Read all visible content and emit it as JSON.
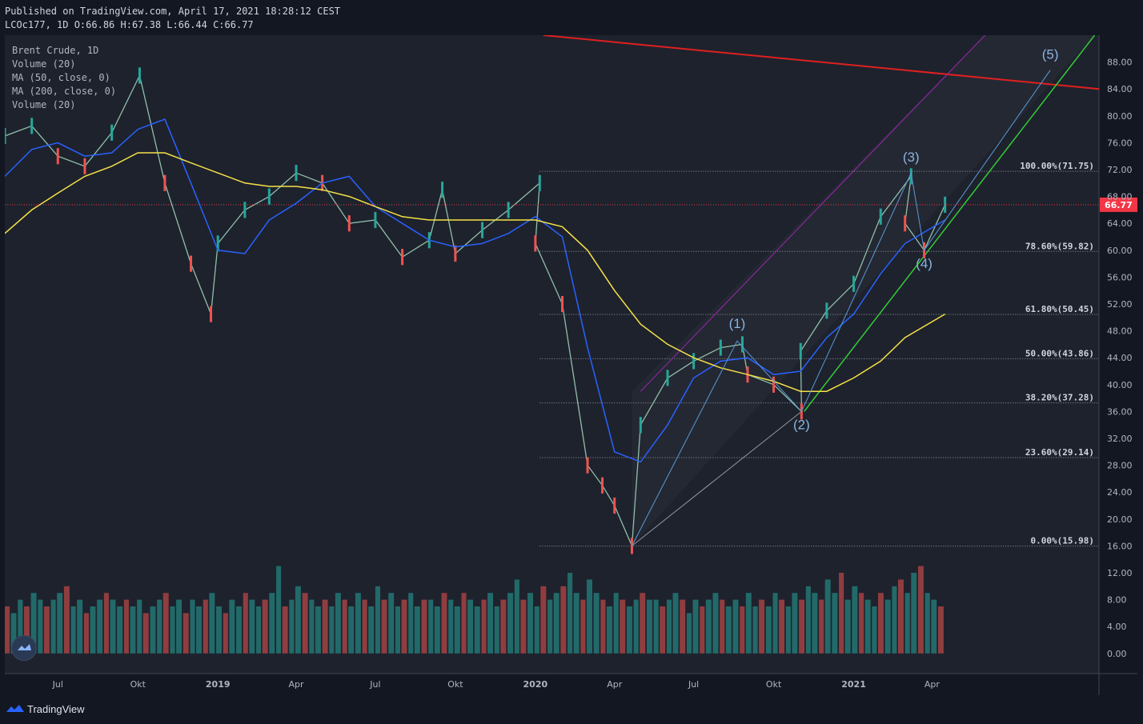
{
  "header": {
    "published": "Published on TradingView.com, April 17, 2021 18:28:12 CEST",
    "ohlc": "LCOc177, 1D O:66.86 H:67.38 L:66.44 C:66.77"
  },
  "legend": {
    "items": [
      "Brent Crude, 1D",
      "Volume (20)",
      "MA (50, close, 0)",
      "MA (200, close, 0)",
      "Volume (20)"
    ]
  },
  "footer": {
    "brand": "TradingView"
  },
  "colors": {
    "background": "#1e222d",
    "grid": "#2a2e39",
    "up": "#26a69a",
    "down": "#ef5350",
    "ma50": "#2962ff",
    "ma200": "#f5e146",
    "wave": "#5b9bd5",
    "fib": "#9598a1",
    "red_trend": "#e02020",
    "green_trend": "#33cc33",
    "purple_channel": "#9c27b0",
    "last_price": "#f23645"
  },
  "chart_data": {
    "type": "line",
    "title": "Brent Crude, 1D",
    "price_axis": {
      "ylim": [
        -3,
        92
      ],
      "ticks": [
        "88.00",
        "84.00",
        "80.00",
        "76.00",
        "72.00",
        "68.00",
        "64.00",
        "60.00",
        "56.00",
        "52.00",
        "48.00",
        "44.00",
        "40.00",
        "36.00",
        "32.00",
        "28.00",
        "24.00",
        "20.00",
        "16.00",
        "12.00",
        "8.00",
        "4.00",
        "0.00"
      ],
      "tick_values": [
        88,
        84,
        80,
        76,
        72,
        68,
        64,
        60,
        56,
        52,
        48,
        44,
        40,
        36,
        32,
        28,
        24,
        20,
        16,
        12,
        8,
        4,
        0
      ],
      "last_price": "66.77",
      "last_price_value": 66.77
    },
    "time_axis": {
      "labels": [
        "Jul",
        "Okt",
        "2019",
        "Apr",
        "Jul",
        "Okt",
        "2020",
        "Apr",
        "Jul",
        "Okt",
        "2021",
        "Apr"
      ],
      "bold": [
        false,
        false,
        true,
        false,
        false,
        false,
        true,
        false,
        false,
        false,
        true,
        false
      ],
      "dates": [
        "2018-07",
        "2018-10",
        "2019-01",
        "2019-04",
        "2019-07",
        "2019-10",
        "2020-01",
        "2020-04",
        "2020-07",
        "2020-10",
        "2021-01",
        "2021-04"
      ]
    },
    "series": [
      {
        "name": "Brent Crude",
        "dates": [
          "2018-05",
          "2018-06",
          "2018-07",
          "2018-08",
          "2018-09",
          "2018-10-03",
          "2018-11",
          "2018-12",
          "2018-12-24",
          "2019-01",
          "2019-02",
          "2019-03",
          "2019-04",
          "2019-05",
          "2019-06",
          "2019-07",
          "2019-08",
          "2019-09",
          "2019-09-16",
          "2019-10",
          "2019-11",
          "2019-12",
          "2020-01-06",
          "2020-01",
          "2020-02",
          "2020-03",
          "2020-03-18",
          "2020-04",
          "2020-04-21",
          "2020-05",
          "2020-06",
          "2020-07",
          "2020-08",
          "2020-08-26",
          "2020-09",
          "2020-10",
          "2020-11-02",
          "2020-11",
          "2020-12",
          "2021-01",
          "2021-02",
          "2021-03-08",
          "2021-03",
          "2021-03-23",
          "2021-04-16"
        ],
        "values": [
          77.0,
          78.5,
          74.0,
          72.5,
          77.5,
          86.0,
          70.0,
          58.0,
          50.5,
          61.0,
          66.0,
          68.0,
          71.5,
          70.0,
          64.0,
          64.5,
          59.0,
          61.5,
          69.0,
          59.5,
          63.0,
          66.0,
          70.0,
          61.0,
          52.0,
          28.0,
          25.0,
          22.0,
          16.0,
          34.0,
          41.0,
          43.5,
          45.5,
          46.0,
          41.5,
          40.0,
          36.0,
          45.0,
          51.0,
          55.0,
          65.0,
          71.0,
          64.0,
          60.0,
          66.77
        ]
      },
      {
        "name": "MA (50, close, 0)",
        "dates": [
          "2018-05",
          "2018-06",
          "2018-07",
          "2018-08",
          "2018-09",
          "2018-10",
          "2018-11",
          "2018-12",
          "2019-01",
          "2019-02",
          "2019-03",
          "2019-04",
          "2019-05",
          "2019-06",
          "2019-07",
          "2019-08",
          "2019-09",
          "2019-10",
          "2019-11",
          "2019-12",
          "2020-01",
          "2020-02",
          "2020-03",
          "2020-04",
          "2020-05",
          "2020-06",
          "2020-07",
          "2020-08",
          "2020-09",
          "2020-10",
          "2020-11",
          "2020-12",
          "2021-01",
          "2021-02",
          "2021-03",
          "2021-04-16"
        ],
        "values": [
          71.0,
          75.0,
          76.0,
          74.0,
          74.5,
          78.0,
          79.5,
          70.0,
          60.0,
          59.5,
          64.5,
          67.0,
          70.0,
          71.0,
          66.5,
          64.0,
          61.5,
          60.5,
          61.0,
          62.5,
          65.0,
          62.0,
          45.5,
          30.0,
          28.5,
          34.0,
          41.0,
          43.5,
          44.0,
          41.5,
          42.0,
          47.0,
          50.5,
          56.5,
          61.0,
          64.5
        ]
      },
      {
        "name": "MA (200, close, 0)",
        "dates": [
          "2018-05",
          "2018-06",
          "2018-07",
          "2018-08",
          "2018-09",
          "2018-10",
          "2018-11",
          "2018-12",
          "2019-01",
          "2019-02",
          "2019-03",
          "2019-04",
          "2019-05",
          "2019-06",
          "2019-07",
          "2019-08",
          "2019-09",
          "2019-10",
          "2019-11",
          "2019-12",
          "2020-01",
          "2020-02",
          "2020-03",
          "2020-04",
          "2020-05",
          "2020-06",
          "2020-07",
          "2020-08",
          "2020-09",
          "2020-10",
          "2020-11",
          "2020-12",
          "2021-01",
          "2021-02",
          "2021-03",
          "2021-04-16"
        ],
        "values": [
          62.5,
          66.0,
          68.5,
          71.0,
          72.5,
          74.5,
          74.5,
          73.0,
          71.5,
          70.0,
          69.5,
          69.5,
          69.0,
          68.0,
          66.5,
          65.0,
          64.5,
          64.5,
          64.5,
          64.5,
          64.5,
          63.5,
          60.0,
          54.0,
          49.0,
          46.0,
          44.0,
          42.5,
          41.5,
          40.5,
          39.0,
          39.0,
          41.0,
          43.5,
          47.0,
          50.5
        ]
      }
    ],
    "volume": {
      "name": "Volume (20)",
      "bars": [
        7,
        6,
        8,
        7,
        9,
        8,
        7,
        8,
        9,
        10,
        7,
        8,
        6,
        7,
        8,
        9,
        8,
        7,
        8,
        7,
        8,
        6,
        7,
        8,
        9,
        7,
        8,
        6,
        8,
        7,
        8,
        9,
        7,
        6,
        8,
        7,
        9,
        8,
        7,
        8,
        9,
        13,
        7,
        8,
        10,
        9,
        8,
        7,
        8,
        7,
        9,
        8,
        7,
        9,
        8,
        7,
        10,
        8,
        9,
        7,
        8,
        9,
        7,
        8,
        8,
        7,
        9,
        8,
        7,
        9,
        8,
        7,
        8,
        9,
        7,
        8,
        9,
        11,
        8,
        9,
        7,
        10,
        8,
        9,
        10,
        12,
        9,
        8,
        11,
        9,
        8,
        7,
        9,
        8,
        7,
        8,
        9,
        8,
        8,
        7,
        8,
        9,
        8,
        6,
        8,
        7,
        8,
        9,
        8,
        7,
        8,
        7,
        9,
        7,
        8,
        7,
        9,
        8,
        7,
        9,
        8,
        10,
        9,
        8,
        11,
        9,
        12,
        8,
        10,
        9,
        8,
        7,
        9,
        8,
        10,
        11,
        9,
        12,
        13,
        9,
        8,
        7
      ]
    },
    "waves": {
      "points": [
        {
          "label": "(1)",
          "date": "2020-08-20",
          "value": 46.5
        },
        {
          "label": "(2)",
          "date": "2020-11-02",
          "value": 36.0
        },
        {
          "label": "(3)",
          "date": "2021-03-08",
          "value": 71.5
        },
        {
          "label": "(4)",
          "date": "2021-03-23",
          "value": 60.0
        },
        {
          "label": "(5)",
          "date": "2021-08-15",
          "value": 86.8
        }
      ],
      "start": {
        "date": "2020-04-21",
        "value": 16.0
      }
    },
    "fibonacci": [
      {
        "label": "100.00%(71.75)",
        "value": 71.75
      },
      {
        "label": "78.60%(59.82)",
        "value": 59.82
      },
      {
        "label": "61.80%(50.45)",
        "value": 50.45
      },
      {
        "label": "50.00%(43.86)",
        "value": 43.86
      },
      {
        "label": "38.20%(37.28)",
        "value": 37.28
      },
      {
        "label": "23.60%(29.14)",
        "value": 29.14
      },
      {
        "label": "0.00%(15.98)",
        "value": 15.98
      }
    ],
    "grid": false
  }
}
